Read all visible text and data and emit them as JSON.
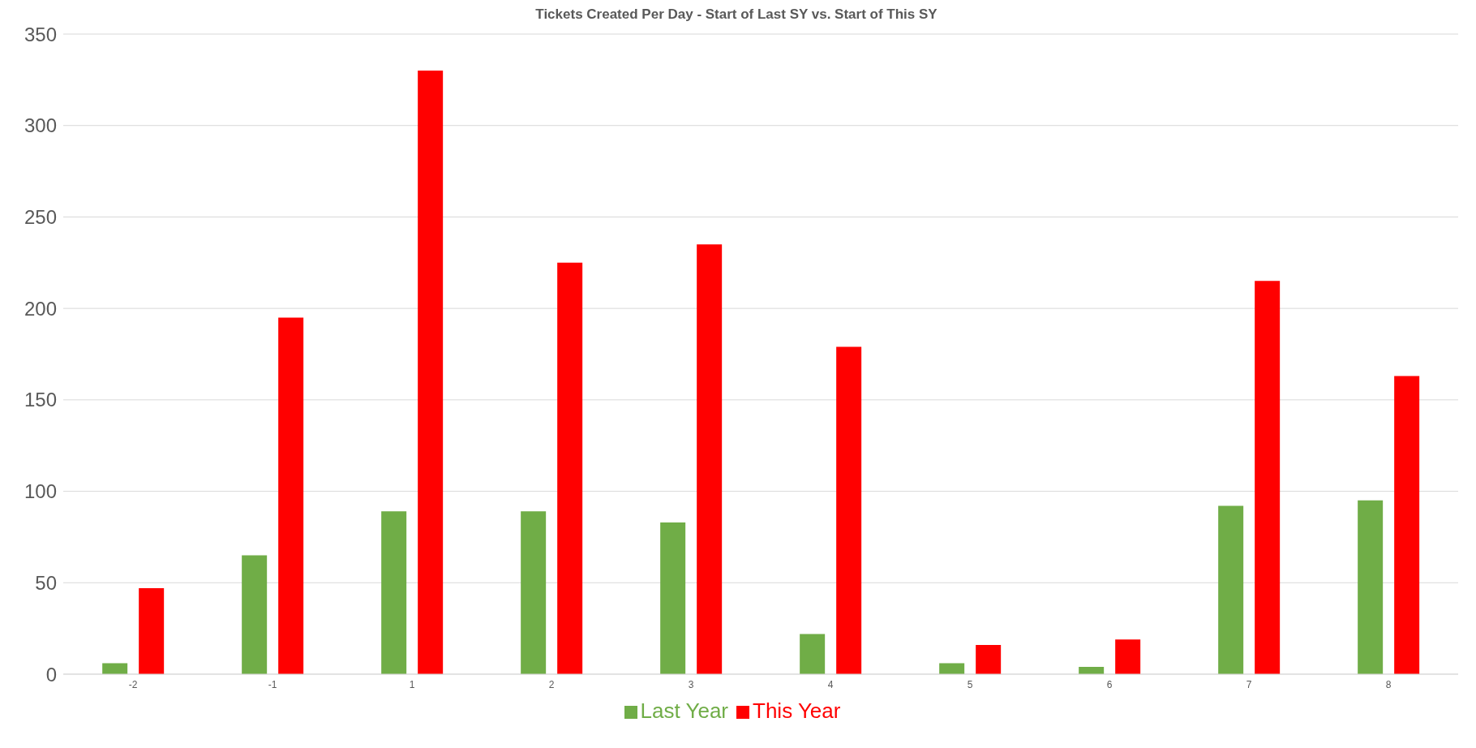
{
  "chart_data": {
    "type": "bar",
    "title": "Tickets Created Per Day - Start of Last SY vs. Start of This SY",
    "categories": [
      "-2",
      "-1",
      "1",
      "2",
      "3",
      "4",
      "5",
      "6",
      "7",
      "8"
    ],
    "series": [
      {
        "name": "Last Year",
        "color": "#70ad47",
        "values": [
          6,
          65,
          89,
          89,
          83,
          22,
          6,
          4,
          92,
          95
        ]
      },
      {
        "name": "This Year",
        "color": "#ff0000",
        "values": [
          47,
          195,
          330,
          225,
          235,
          179,
          16,
          19,
          215,
          163
        ]
      }
    ],
    "ylim": [
      0,
      350
    ],
    "yticks": [
      0,
      50,
      100,
      150,
      200,
      250,
      300,
      350
    ],
    "grid": "y",
    "legend": "bottom"
  }
}
